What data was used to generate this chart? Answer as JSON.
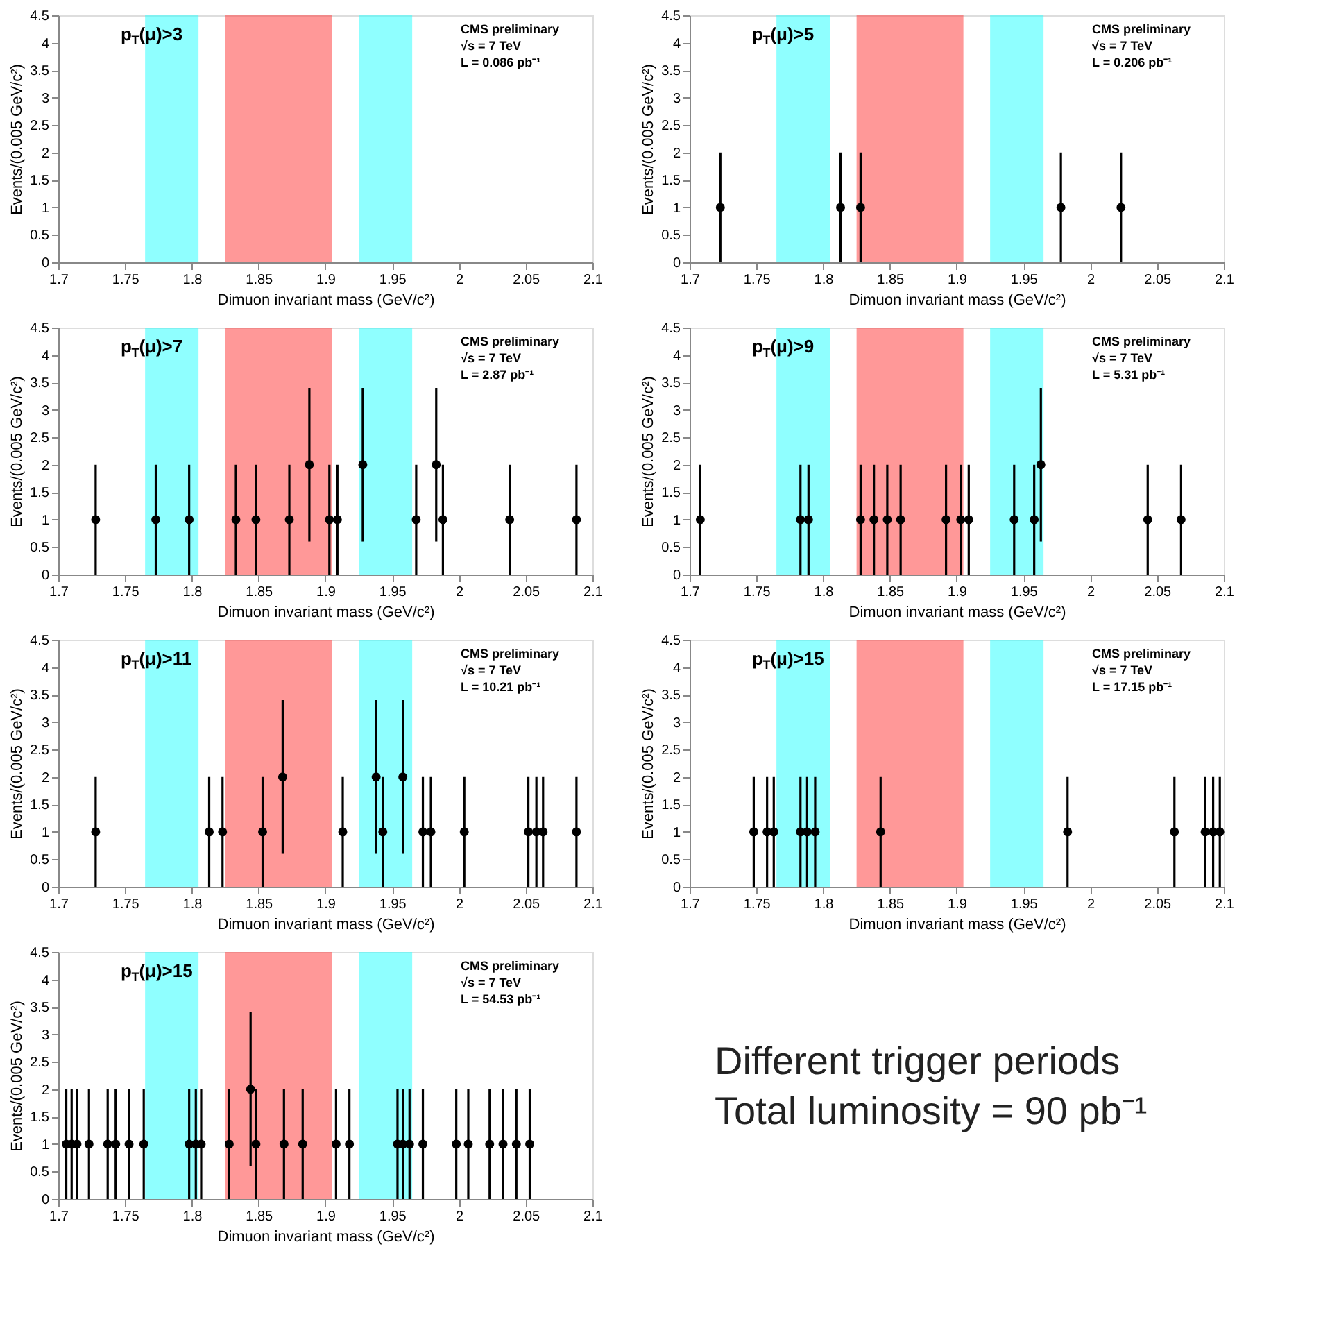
{
  "chart_data": [
    {
      "type": "scatter",
      "xlabel": "Dimuon invariant mass (GeV/c²)",
      "ylabel": "Events/(0.005 GeV/c²)",
      "xlim": [
        1.7,
        2.1
      ],
      "ylim": [
        0,
        4.5
      ],
      "xticks": [
        1.7,
        1.75,
        1.8,
        1.85,
        1.9,
        1.95,
        2,
        2.05,
        2.1
      ],
      "yticks": [
        0,
        0.5,
        1,
        1.5,
        2,
        2.5,
        3,
        3.5,
        4,
        4.5
      ],
      "bands": [
        {
          "axis": "x",
          "from": 1.765,
          "to": 1.805,
          "color": "#33ffff"
        },
        {
          "axis": "x",
          "from": 1.825,
          "to": 1.905,
          "color": "#ff4444"
        },
        {
          "axis": "x",
          "from": 1.925,
          "to": 1.965,
          "color": "#33ffff"
        }
      ],
      "annotations": [
        "p$_{T}$(μ)>3",
        "CMS preliminary",
        "√s = 7 TeV",
        "L = 0.086 pb⁻¹"
      ]
    },
    {
      "type": "scatter",
      "xlabel": "Dimuon invariant mass (GeV/c²)",
      "ylabel": "Events/(0.005 GeV/c²)",
      "xlim": [
        1.7,
        2.1
      ],
      "ylim": [
        0,
        4.5
      ],
      "xticks": [
        1.7,
        1.75,
        1.8,
        1.85,
        1.9,
        1.95,
        2,
        2.05,
        2.1
      ],
      "yticks": [
        0,
        0.5,
        1,
        1.5,
        2,
        2.5,
        3,
        3.5,
        4,
        4.5
      ],
      "marker": "circle",
      "bands": [
        {
          "axis": "x",
          "from": 1.765,
          "to": 1.805,
          "color": "#33ffff"
        },
        {
          "axis": "x",
          "from": 1.825,
          "to": 1.905,
          "color": "#ff4444"
        },
        {
          "axis": "x",
          "from": 1.925,
          "to": 1.965,
          "color": "#33ffff"
        }
      ],
      "annotations": [
        "p$_{T}$(μ)>5",
        "CMS preliminary",
        "√s = 7 TeV",
        "L = 0.206 pb⁻¹"
      ],
      "series": [
        {
          "color": "#000000",
          "x": [
            1.723,
            1.813,
            1.828,
            1.978,
            2.023
          ],
          "values": [
            1,
            1,
            1,
            1,
            1
          ],
          "errors": [
            1,
            1,
            1,
            1,
            1
          ]
        }
      ]
    },
    {
      "type": "scatter",
      "xlabel": "Dimuon invariant mass (GeV/c²)",
      "ylabel": "Events/(0.005 GeV/c²)",
      "xlim": [
        1.7,
        2.1
      ],
      "ylim": [
        0,
        4.5
      ],
      "xticks": [
        1.7,
        1.75,
        1.8,
        1.85,
        1.9,
        1.95,
        2,
        2.05,
        2.1
      ],
      "yticks": [
        0,
        0.5,
        1,
        1.5,
        2,
        2.5,
        3,
        3.5,
        4,
        4.5
      ],
      "marker": "circle",
      "bands": [
        {
          "axis": "x",
          "from": 1.765,
          "to": 1.805,
          "color": "#33ffff"
        },
        {
          "axis": "x",
          "from": 1.825,
          "to": 1.905,
          "color": "#ff4444"
        },
        {
          "axis": "x",
          "from": 1.925,
          "to": 1.965,
          "color": "#33ffff"
        }
      ],
      "annotations": [
        "p$_{T}$(μ)>7",
        "CMS preliminary",
        "√s = 7 TeV",
        "L = 2.87 pb⁻¹"
      ],
      "series": [
        {
          "color": "#000000",
          "x": [
            1.728,
            1.773,
            1.798,
            1.833,
            1.848,
            1.873,
            1.888,
            1.903,
            1.909,
            1.928,
            1.968,
            1.983,
            1.988,
            2.038,
            2.088
          ],
          "values": [
            1,
            1,
            1,
            1,
            1,
            1,
            2,
            1,
            1,
            2,
            1,
            2,
            1,
            1,
            1
          ],
          "errors": [
            1,
            1,
            1,
            1,
            1,
            1,
            1.4,
            1,
            1,
            1.4,
            1,
            1.4,
            1,
            1,
            1
          ]
        }
      ]
    },
    {
      "type": "scatter",
      "xlabel": "Dimuon invariant mass (GeV/c²)",
      "ylabel": "Events/(0.005 GeV/c²)",
      "xlim": [
        1.7,
        2.1
      ],
      "ylim": [
        0,
        4.5
      ],
      "xticks": [
        1.7,
        1.75,
        1.8,
        1.85,
        1.9,
        1.95,
        2,
        2.05,
        2.1
      ],
      "yticks": [
        0,
        0.5,
        1,
        1.5,
        2,
        2.5,
        3,
        3.5,
        4,
        4.5
      ],
      "marker": "circle",
      "bands": [
        {
          "axis": "x",
          "from": 1.765,
          "to": 1.805,
          "color": "#33ffff"
        },
        {
          "axis": "x",
          "from": 1.825,
          "to": 1.905,
          "color": "#ff4444"
        },
        {
          "axis": "x",
          "from": 1.925,
          "to": 1.965,
          "color": "#33ffff"
        }
      ],
      "annotations": [
        "p$_{T}$(μ)>9",
        "CMS preliminary",
        "√s = 7 TeV",
        "L = 5.31 pb⁻¹"
      ],
      "series": [
        {
          "color": "#000000",
          "x": [
            1.708,
            1.783,
            1.789,
            1.828,
            1.838,
            1.848,
            1.858,
            1.892,
            1.903,
            1.909,
            1.943,
            1.958,
            1.963,
            2.043,
            2.068
          ],
          "values": [
            1,
            1,
            1,
            1,
            1,
            1,
            1,
            1,
            1,
            1,
            1,
            1,
            2,
            1,
            1
          ],
          "errors": [
            1,
            1,
            1,
            1,
            1,
            1,
            1,
            1,
            1,
            1,
            1,
            1,
            1.4,
            1,
            1
          ]
        }
      ]
    },
    {
      "type": "scatter",
      "xlabel": "Dimuon invariant mass (GeV/c²)",
      "ylabel": "Events/(0.005 GeV/c²)",
      "xlim": [
        1.7,
        2.1
      ],
      "ylim": [
        0,
        4.5
      ],
      "xticks": [
        1.7,
        1.75,
        1.8,
        1.85,
        1.9,
        1.95,
        2,
        2.05,
        2.1
      ],
      "yticks": [
        0,
        0.5,
        1,
        1.5,
        2,
        2.5,
        3,
        3.5,
        4,
        4.5
      ],
      "marker": "circle",
      "bands": [
        {
          "axis": "x",
          "from": 1.765,
          "to": 1.805,
          "color": "#33ffff"
        },
        {
          "axis": "x",
          "from": 1.825,
          "to": 1.905,
          "color": "#ff4444"
        },
        {
          "axis": "x",
          "from": 1.925,
          "to": 1.965,
          "color": "#33ffff"
        }
      ],
      "annotations": [
        "p$_{T}$(μ)>11",
        "CMS preliminary",
        "√s = 7 TeV",
        "L = 10.21 pb⁻¹"
      ],
      "series": [
        {
          "color": "#000000",
          "x": [
            1.728,
            1.813,
            1.823,
            1.853,
            1.868,
            1.913,
            1.938,
            1.943,
            1.958,
            1.973,
            1.979,
            2.004,
            2.052,
            2.058,
            2.063,
            2.088
          ],
          "values": [
            1,
            1,
            1,
            1,
            2,
            1,
            2,
            1,
            2,
            1,
            1,
            1,
            1,
            1,
            1,
            1
          ],
          "errors": [
            1,
            1,
            1,
            1,
            1.4,
            1,
            1.4,
            1,
            1.4,
            1,
            1,
            1,
            1,
            1,
            1,
            1
          ]
        }
      ]
    },
    {
      "type": "scatter",
      "xlabel": "Dimuon invariant mass (GeV/c²)",
      "ylabel": "Events/(0.005 GeV/c²)",
      "xlim": [
        1.7,
        2.1
      ],
      "ylim": [
        0,
        4.5
      ],
      "xticks": [
        1.7,
        1.75,
        1.8,
        1.85,
        1.9,
        1.95,
        2,
        2.05,
        2.1
      ],
      "yticks": [
        0,
        0.5,
        1,
        1.5,
        2,
        2.5,
        3,
        3.5,
        4,
        4.5
      ],
      "marker": "circle",
      "bands": [
        {
          "axis": "x",
          "from": 1.765,
          "to": 1.805,
          "color": "#33ffff"
        },
        {
          "axis": "x",
          "from": 1.825,
          "to": 1.905,
          "color": "#ff4444"
        },
        {
          "axis": "x",
          "from": 1.925,
          "to": 1.965,
          "color": "#33ffff"
        }
      ],
      "annotations": [
        "p$_{T}$(μ)>15",
        "CMS preliminary",
        "√s = 7 TeV",
        "L = 17.15 pb⁻¹"
      ],
      "series": [
        {
          "color": "#000000",
          "x": [
            1.748,
            1.758,
            1.763,
            1.783,
            1.788,
            1.794,
            1.843,
            1.983,
            2.063,
            2.086,
            2.092,
            2.097
          ],
          "values": [
            1,
            1,
            1,
            1,
            1,
            1,
            1,
            1,
            1,
            1,
            1,
            1
          ],
          "errors": [
            1,
            1,
            1,
            1,
            1,
            1,
            1,
            1,
            1,
            1,
            1,
            1
          ]
        }
      ]
    },
    {
      "type": "scatter",
      "xlabel": "Dimuon invariant mass (GeV/c²)",
      "ylabel": "Events/(0.005 GeV/c²)",
      "xlim": [
        1.7,
        2.1
      ],
      "ylim": [
        0,
        4.5
      ],
      "xticks": [
        1.7,
        1.75,
        1.8,
        1.85,
        1.9,
        1.95,
        2,
        2.05,
        2.1
      ],
      "yticks": [
        0,
        0.5,
        1,
        1.5,
        2,
        2.5,
        3,
        3.5,
        4,
        4.5
      ],
      "marker": "circle",
      "bands": [
        {
          "axis": "x",
          "from": 1.765,
          "to": 1.805,
          "color": "#33ffff"
        },
        {
          "axis": "x",
          "from": 1.825,
          "to": 1.905,
          "color": "#ff4444"
        },
        {
          "axis": "x",
          "from": 1.925,
          "to": 1.965,
          "color": "#33ffff"
        }
      ],
      "annotations": [
        "p$_{T}$(μ)>15",
        "CMS preliminary",
        "√s = 7 TeV",
        "L = 54.53 pb⁻¹"
      ],
      "series": [
        {
          "color": "#000000",
          "x": [
            1.706,
            1.71,
            1.714,
            1.723,
            1.737,
            1.743,
            1.753,
            1.764,
            1.798,
            1.803,
            1.807,
            1.828,
            1.844,
            1.848,
            1.869,
            1.883,
            1.908,
            1.918,
            1.954,
            1.958,
            1.963,
            1.973,
            1.998,
            2.007,
            2.023,
            2.033,
            2.043,
            2.053
          ],
          "values": [
            1,
            1,
            1,
            1,
            1,
            1,
            1,
            1,
            1,
            1,
            1,
            1,
            2,
            1,
            1,
            1,
            1,
            1,
            1,
            1,
            1,
            1,
            1,
            1,
            1,
            1,
            1,
            1
          ],
          "errors": [
            1,
            1,
            1,
            1,
            1,
            1,
            1,
            1,
            1,
            1,
            1,
            1,
            1.4,
            1,
            1,
            1,
            1,
            1,
            1,
            1,
            1,
            1,
            1,
            1,
            1,
            1,
            1,
            1
          ]
        }
      ]
    },
    {
      "type": "other",
      "annotations": [
        "Different trigger periods",
        "Total luminosity = 90 pb⁻¹"
      ]
    }
  ]
}
